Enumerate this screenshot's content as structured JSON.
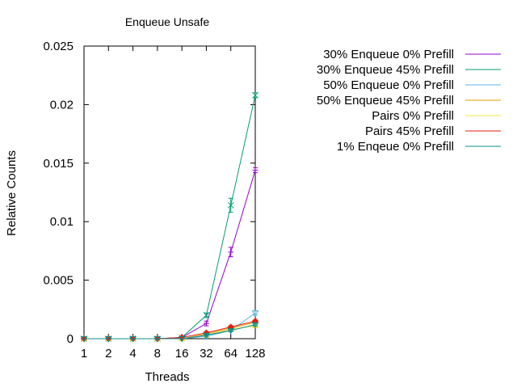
{
  "chart_data": {
    "type": "line",
    "title": "Enqueue Unsafe",
    "xlabel": "Threads",
    "ylabel": "Relative Counts",
    "x_scale": "log2",
    "categories": [
      "1",
      "2",
      "4",
      "8",
      "16",
      "32",
      "64",
      "128"
    ],
    "x": [
      1,
      2,
      4,
      8,
      16,
      32,
      64,
      128
    ],
    "ylim": [
      0,
      0.025
    ],
    "yticks": [
      "0",
      "0.005",
      "0.01",
      "0.015",
      "0.02",
      "0.025"
    ],
    "ytick_values": [
      0,
      0.005,
      0.01,
      0.015,
      0.02,
      0.025
    ],
    "grid": false,
    "legend_position": "right",
    "series": [
      {
        "name": "30% Enqueue 0% Prefill",
        "color": "#9400d3",
        "marker": "plus",
        "values": [
          0,
          0,
          0,
          0,
          0.0001,
          0.0013,
          0.0074,
          0.0144
        ],
        "errors": [
          0,
          0,
          0,
          0,
          5e-05,
          0.0002,
          0.0004,
          0.0002
        ]
      },
      {
        "name": "30% Enqueue 45% Prefill",
        "color": "#009e73",
        "marker": "cross",
        "values": [
          0,
          0,
          0,
          0,
          0.0001,
          0.002,
          0.0114,
          0.0208
        ],
        "errors": [
          0,
          0,
          0,
          0,
          5e-05,
          0.0002,
          0.0006,
          0.0002
        ]
      },
      {
        "name": "50% Enqueue 0% Prefill",
        "color": "#56b4e9",
        "marker": "triangle-down",
        "values": [
          0,
          0,
          0,
          0,
          0,
          0.0002,
          0.0007,
          0.0022
        ],
        "errors": [
          0,
          0,
          0,
          0,
          0,
          0.0001,
          0.0001,
          0.0002
        ]
      },
      {
        "name": "50% Enqueue 45% Prefill",
        "color": "#e69f00",
        "marker": "circle",
        "values": [
          0,
          0,
          0,
          0,
          0,
          0.0004,
          0.0009,
          0.0014
        ],
        "errors": [
          0,
          0,
          0,
          0,
          0,
          0.0001,
          0.0001,
          0.0001
        ]
      },
      {
        "name": "Pairs 0% Prefill",
        "color": "#f0e442",
        "marker": "triangle-up",
        "values": [
          0,
          0,
          0,
          0,
          0,
          0.0003,
          0.0008,
          0.0011
        ],
        "errors": [
          0,
          0,
          0,
          0,
          0,
          0.0001,
          0.0001,
          0.0001
        ]
      },
      {
        "name": "Pairs 45% Prefill",
        "color": "#e51e10",
        "marker": "diamond",
        "values": [
          0,
          0,
          0,
          0,
          0.0001,
          0.0005,
          0.001,
          0.0015
        ],
        "errors": [
          0,
          0,
          0,
          0,
          5e-05,
          0.0001,
          0.0001,
          0.0001
        ]
      },
      {
        "name": "1% Enqeue 0% Prefill",
        "color": "#0a8f8f",
        "marker": "triangle-down",
        "values": [
          0,
          0,
          0,
          0,
          0,
          0.0003,
          0.0007,
          0.0012
        ],
        "errors": [
          0,
          0,
          0,
          0,
          0,
          0.0001,
          0.0001,
          0.0001
        ]
      }
    ]
  }
}
